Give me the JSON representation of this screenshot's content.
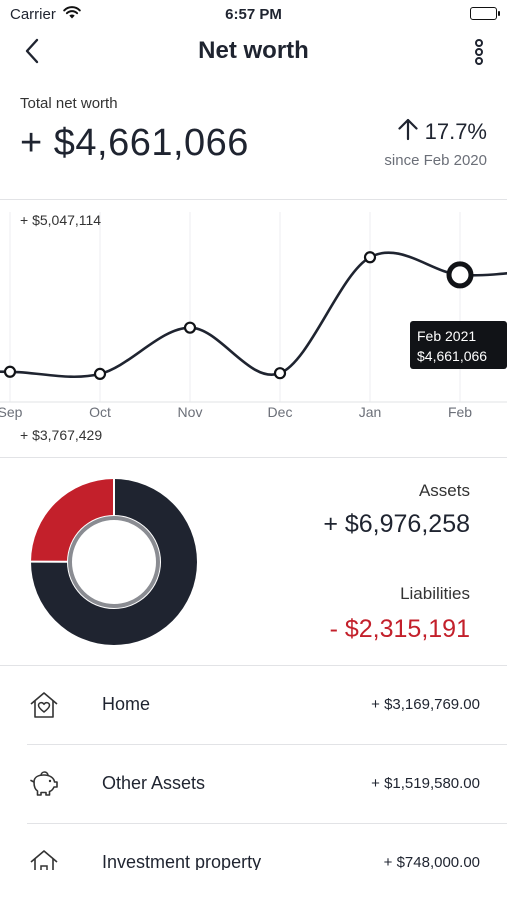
{
  "status_bar": {
    "carrier": "Carrier",
    "time": "6:57 PM"
  },
  "nav": {
    "title": "Net worth",
    "back_icon": "chevron-left-icon",
    "more_icon": "more-vertical-icon"
  },
  "summary": {
    "label": "Total net worth",
    "value": "+ $4,661,066",
    "change_pct": "17.7%",
    "change_direction": "up",
    "since": "since Feb 2020"
  },
  "chart_data": {
    "type": "line",
    "x": [
      "Sep",
      "Oct",
      "Nov",
      "Dec",
      "Jan",
      "Feb"
    ],
    "values": [
      3980000,
      3965000,
      4290000,
      3970000,
      4785000,
      4661066
    ],
    "ylim": [
      3767429,
      5047114
    ],
    "max_label": "+ $5,047,114",
    "min_label": "+ $3,767,429",
    "selected_index": 5,
    "tooltip": {
      "title": "Feb 2021",
      "value": "$4,661,066"
    },
    "grid": "vertical",
    "line_color": "#1f2430"
  },
  "breakdown": {
    "assets_label": "Assets",
    "assets_value": "+ $6,976,258",
    "liabilities_label": "Liabilities",
    "liabilities_value": "- $2,315,191",
    "assets_amount": 6976258,
    "liabilities_amount": 2315191,
    "assets_color": "#1f2430",
    "liabilities_color": "#c3202b"
  },
  "items": [
    {
      "name": "Home",
      "amount": "+ $3,169,769.00",
      "icon": "home-icon"
    },
    {
      "name": "Other Assets",
      "amount": "+ $1,519,580.00",
      "icon": "piggy-bank-icon"
    },
    {
      "name": "Investment property",
      "amount": "+ $748,000.00",
      "icon": "investment-property-icon"
    }
  ]
}
